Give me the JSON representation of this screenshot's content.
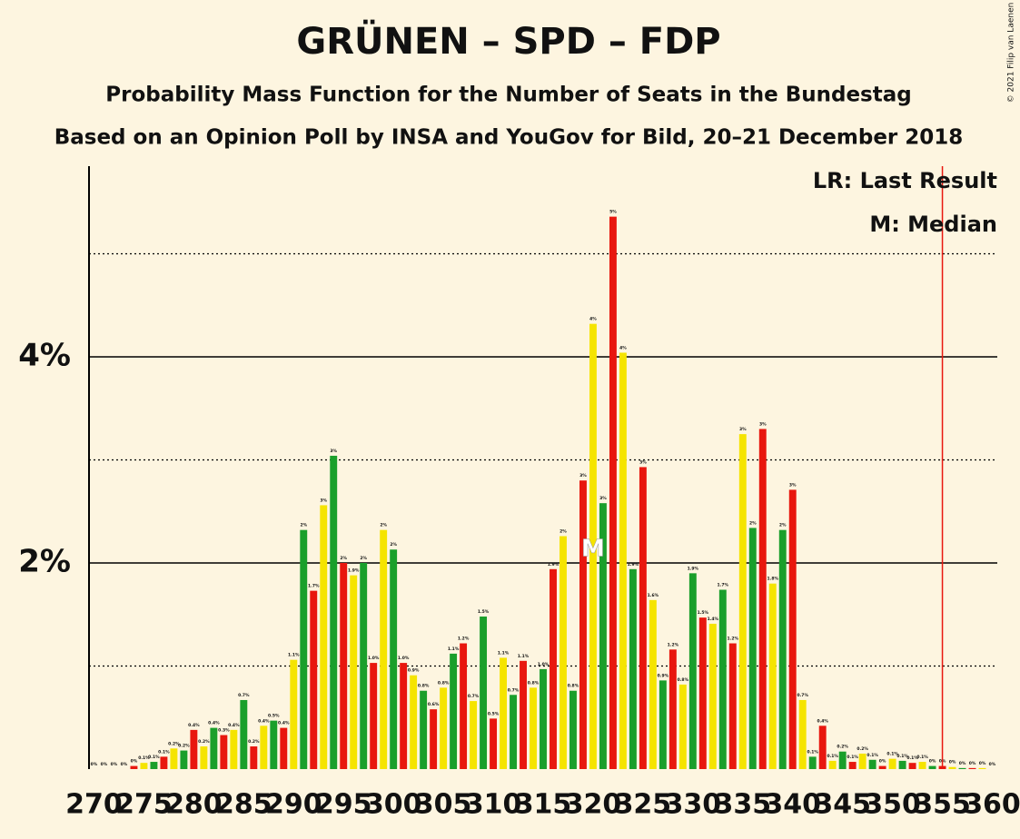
{
  "chart_data": {
    "type": "bar",
    "title": "GRÜNEN – SPD – FDP",
    "subtitle": "Probability Mass Function for the Number of Seats in the Bundestag",
    "subtitle2": "Based on an Opinion Poll by INSA and YouGov for Bild, 20–21 December 2018",
    "copyright": "© 2021 Filip van Laenen",
    "x": [
      270,
      271,
      272,
      273,
      274,
      275,
      276,
      277,
      278,
      279,
      280,
      281,
      282,
      283,
      284,
      285,
      286,
      287,
      288,
      289,
      290,
      291,
      292,
      293,
      294,
      295,
      296,
      297,
      298,
      299,
      300,
      301,
      302,
      303,
      304,
      305,
      306,
      307,
      308,
      309,
      310,
      311,
      312,
      313,
      314,
      315,
      316,
      317,
      318,
      319,
      320,
      321,
      322,
      323,
      324,
      325,
      326,
      327,
      328,
      329,
      330,
      331,
      332,
      333,
      334,
      335,
      336,
      337,
      338,
      339,
      340,
      341,
      342,
      343,
      344,
      345,
      346,
      347,
      348,
      349,
      350,
      351,
      352,
      353,
      354,
      355,
      356,
      357,
      358,
      359,
      360
    ],
    "values": [
      0,
      0,
      0,
      0,
      0.03,
      0.06,
      0.07,
      0.12,
      0.2,
      0.18,
      0.38,
      0.22,
      0.4,
      0.33,
      0.38,
      0.67,
      0.22,
      0.42,
      0.47,
      0.4,
      1.06,
      2.32,
      1.73,
      2.56,
      3.04,
      2.0,
      1.88,
      2.0,
      1.03,
      2.32,
      2.13,
      1.03,
      0.91,
      0.76,
      0.58,
      0.79,
      1.12,
      1.22,
      0.66,
      1.48,
      0.49,
      1.08,
      0.72,
      1.05,
      0.79,
      0.97,
      1.94,
      2.26,
      0.76,
      2.8,
      4.32,
      2.58,
      5.36,
      4.04,
      1.94,
      2.93,
      1.64,
      0.86,
      1.16,
      0.82,
      1.9,
      1.47,
      1.41,
      1.74,
      1.22,
      3.25,
      2.34,
      3.3,
      1.8,
      2.32,
      2.71,
      0.67,
      0.12,
      0.42,
      0.08,
      0.17,
      0.07,
      0.15,
      0.09,
      0.03,
      0.1,
      0.08,
      0.06,
      0.07,
      0.03,
      0.03,
      0.02,
      0.01,
      0.01,
      0.01,
      0
    ],
    "value_labels": [
      "0%",
      "0%",
      "0%",
      "0%",
      "0%",
      "0.1%",
      "0.1%",
      "0.1%",
      "0.2%",
      "0.2%",
      "0.4%",
      "0.2%",
      "0.4%",
      "0.3%",
      "0.4%",
      "0.7%",
      "0.2%",
      "0.4%",
      "0.5%",
      "0.4%",
      "1.1%",
      "2%",
      "1.7%",
      "3%",
      "3%",
      "2%",
      "1.9%",
      "2%",
      "1.0%",
      "2%",
      "2%",
      "1.0%",
      "0.9%",
      "0.8%",
      "0.6%",
      "0.8%",
      "1.1%",
      "1.2%",
      "0.7%",
      "1.5%",
      "0.5%",
      "1.1%",
      "0.7%",
      "1.1%",
      "0.8%",
      "1.0%",
      "1.9%",
      "2%",
      "0.8%",
      "3%",
      "4%",
      "3%",
      "5%",
      "4%",
      "1.9%",
      "3%",
      "1.6%",
      "0.9%",
      "1.2%",
      "0.8%",
      "1.9%",
      "1.5%",
      "1.4%",
      "1.7%",
      "1.2%",
      "3%",
      "2%",
      "3%",
      "1.8%",
      "2%",
      "3%",
      "0.7%",
      "0.1%",
      "0.4%",
      "0.1%",
      "0.2%",
      "0.1%",
      "0.2%",
      "0.1%",
      "0%",
      "0.1%",
      "0.1%",
      "0.1%",
      "0.1%",
      "0%",
      "0%",
      "0%",
      "0%",
      "0%",
      "0%",
      "0%"
    ],
    "colors": [
      "#1a9f2b",
      "#e8170e",
      "#f5e400",
      "#1a9f2b",
      "#e8170e",
      "#f5e400",
      "#1a9f2b",
      "#e8170e",
      "#f5e400",
      "#1a9f2b",
      "#e8170e",
      "#f5e400",
      "#1a9f2b",
      "#e8170e",
      "#f5e400",
      "#1a9f2b",
      "#e8170e",
      "#f5e400",
      "#1a9f2b",
      "#e8170e",
      "#f5e400",
      "#1a9f2b",
      "#e8170e",
      "#f5e400",
      "#1a9f2b",
      "#e8170e",
      "#f5e400",
      "#1a9f2b",
      "#e8170e",
      "#f5e400",
      "#1a9f2b",
      "#e8170e",
      "#f5e400",
      "#1a9f2b",
      "#e8170e",
      "#f5e400",
      "#1a9f2b",
      "#e8170e",
      "#f5e400",
      "#1a9f2b",
      "#e8170e",
      "#f5e400",
      "#1a9f2b",
      "#e8170e",
      "#f5e400",
      "#1a9f2b",
      "#e8170e",
      "#f5e400",
      "#1a9f2b",
      "#e8170e",
      "#f5e400",
      "#1a9f2b",
      "#e8170e",
      "#f5e400",
      "#1a9f2b",
      "#e8170e",
      "#f5e400",
      "#1a9f2b",
      "#e8170e",
      "#f5e400",
      "#1a9f2b",
      "#e8170e",
      "#f5e400",
      "#1a9f2b",
      "#e8170e",
      "#f5e400",
      "#1a9f2b",
      "#e8170e",
      "#f5e400",
      "#1a9f2b",
      "#e8170e",
      "#f5e400",
      "#1a9f2b",
      "#e8170e",
      "#f5e400",
      "#1a9f2b",
      "#e8170e",
      "#f5e400",
      "#1a9f2b",
      "#e8170e",
      "#f5e400",
      "#1a9f2b",
      "#e8170e",
      "#f5e400",
      "#1a9f2b",
      "#e8170e",
      "#f5e400",
      "#1a9f2b",
      "#e8170e",
      "#f5e400",
      "#1a9f2b"
    ],
    "xlim": [
      269.5,
      360.5
    ],
    "xticks": [
      270,
      275,
      280,
      285,
      290,
      295,
      300,
      305,
      310,
      315,
      320,
      325,
      330,
      335,
      340,
      345,
      350,
      355,
      360
    ],
    "ylim": [
      0,
      5.85
    ],
    "yticks": [
      {
        "value": 2,
        "label": "2%"
      },
      {
        "value": 4,
        "label": "4%"
      }
    ],
    "minor_gridlines": [
      1,
      3,
      5
    ],
    "last_result": 355,
    "median": 320,
    "median_label": "M",
    "legend": [
      "LR: Last Result",
      "M: Median"
    ]
  }
}
